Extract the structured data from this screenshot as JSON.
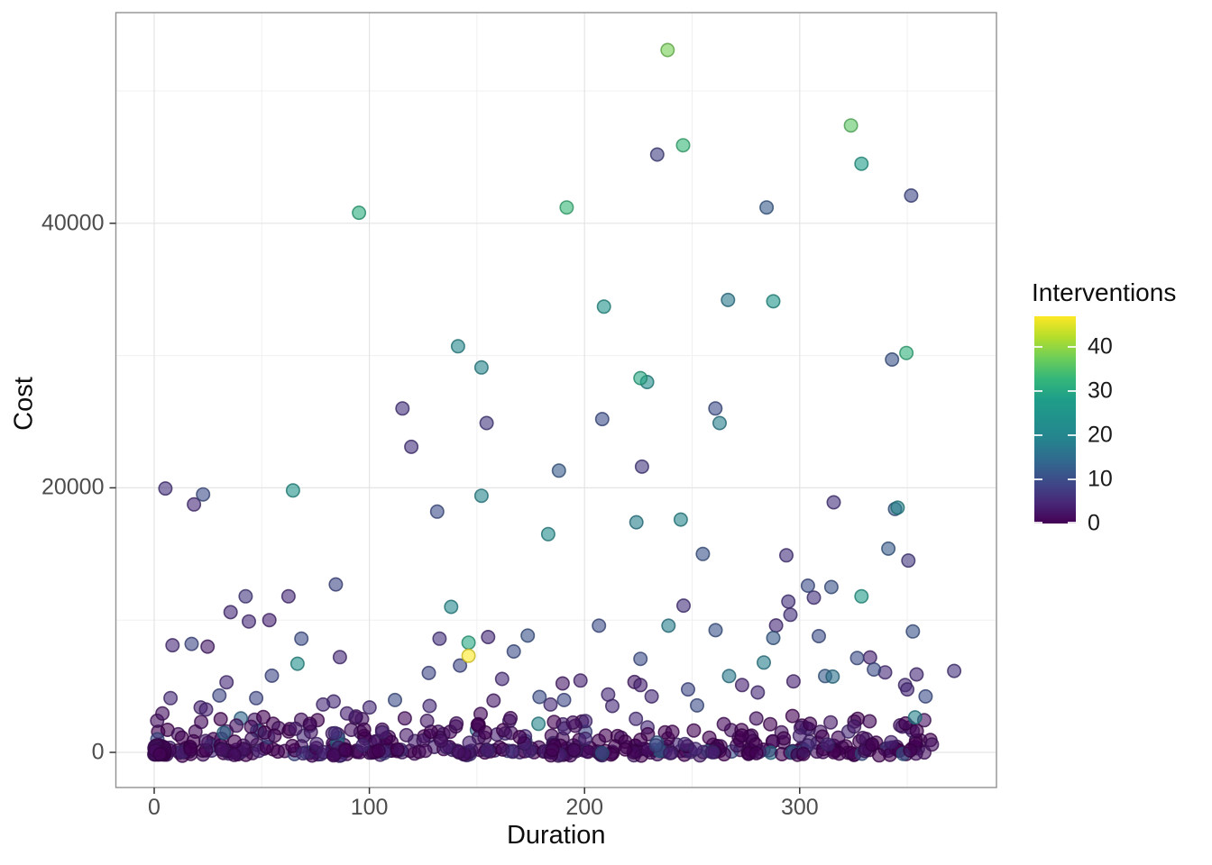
{
  "chart_data": {
    "type": "scatter",
    "xlabel": "Duration",
    "ylabel": "Cost",
    "x_ticks": [
      0,
      100,
      200,
      300
    ],
    "x_tick_labels": [
      "0",
      "100",
      "200",
      "300"
    ],
    "x_minor_ticks": [
      50,
      150,
      250,
      350
    ],
    "y_ticks": [
      0,
      20000,
      40000
    ],
    "y_tick_labels": [
      "0",
      "20000",
      "40000"
    ],
    "y_minor_ticks": [
      10000,
      30000,
      50000
    ],
    "xlim": [
      -18,
      391
    ],
    "ylim": [
      -2620,
      55900
    ],
    "grid": "on",
    "legend": {
      "title": "Interventions",
      "position": "right",
      "ticks": [
        0,
        10,
        20,
        30,
        40
      ],
      "tick_labels": [
        "0",
        "10",
        "20",
        "30",
        "40"
      ],
      "domain": [
        0,
        47
      ]
    },
    "viridis_stops": [
      "#440154",
      "#482878",
      "#3e4a89",
      "#31688e",
      "#26828e",
      "#21918c",
      "#1f9e89",
      "#35b779",
      "#6ece58",
      "#b5de2b",
      "#fde725"
    ],
    "points_format": [
      "duration",
      "cost",
      "interventions"
    ],
    "points": [
      [
        238.6,
        53100,
        38
      ],
      [
        323.8,
        47400,
        36
      ],
      [
        245.8,
        45900,
        33
      ],
      [
        233.8,
        45200,
        8
      ],
      [
        328.7,
        44500,
        28
      ],
      [
        351.8,
        42100,
        9
      ],
      [
        191.7,
        41200,
        33
      ],
      [
        284.6,
        41200,
        12
      ],
      [
        95.2,
        40800,
        31
      ],
      [
        266.7,
        34200,
        17
      ],
      [
        287.7,
        34100,
        25
      ],
      [
        209,
        33700,
        24
      ],
      [
        141.2,
        30700,
        21
      ],
      [
        349.6,
        30200,
        32
      ],
      [
        342.9,
        29700,
        11
      ],
      [
        152.1,
        29100,
        20
      ],
      [
        226,
        28300,
        30
      ],
      [
        229.1,
        28000,
        22
      ],
      [
        115.4,
        26000,
        6
      ],
      [
        260.8,
        26000,
        10
      ],
      [
        208.2,
        25200,
        10
      ],
      [
        262.8,
        24900,
        18
      ],
      [
        154.5,
        24900,
        7
      ],
      [
        119.5,
        23100,
        6
      ],
      [
        226.7,
        21600,
        7
      ],
      [
        188.1,
        21300,
        12
      ],
      [
        5.2,
        19950,
        6
      ],
      [
        64.5,
        19800,
        24
      ],
      [
        22.7,
        19500,
        10
      ],
      [
        152.1,
        19400,
        20
      ],
      [
        315.8,
        18900,
        6
      ],
      [
        18.5,
        18750,
        5
      ],
      [
        344.3,
        18400,
        12
      ],
      [
        345.5,
        18500,
        20
      ],
      [
        131.5,
        18200,
        10
      ],
      [
        244.7,
        17600,
        20
      ],
      [
        224.1,
        17400,
        18
      ],
      [
        183.1,
        16500,
        22
      ],
      [
        341.2,
        15400,
        12
      ],
      [
        255,
        15000,
        11
      ],
      [
        293.8,
        14900,
        6
      ],
      [
        350.5,
        14500,
        7
      ],
      [
        84.4,
        12700,
        9
      ],
      [
        303.8,
        12600,
        10
      ],
      [
        314.7,
        12500,
        11
      ],
      [
        42.5,
        11800,
        7
      ],
      [
        62.4,
        11800,
        5
      ],
      [
        328.7,
        11800,
        27
      ],
      [
        306.6,
        11700,
        6
      ],
      [
        294.7,
        11400,
        6
      ],
      [
        246,
        11100,
        6
      ],
      [
        138,
        11000,
        21
      ],
      [
        35.5,
        10600,
        5
      ],
      [
        295.7,
        10400,
        6
      ],
      [
        53.5,
        10000,
        4
      ],
      [
        44,
        9900,
        5
      ],
      [
        289,
        9600,
        5
      ],
      [
        206.7,
        9580,
        10
      ],
      [
        239,
        9580,
        18
      ],
      [
        260.9,
        9240,
        11
      ],
      [
        352.6,
        9140,
        11
      ],
      [
        173.6,
        8830,
        11
      ],
      [
        308.9,
        8790,
        10
      ],
      [
        155.2,
        8720,
        5
      ],
      [
        287.7,
        8650,
        12
      ],
      [
        68.4,
        8600,
        10
      ],
      [
        132.6,
        8600,
        6
      ],
      [
        146.1,
        8300,
        30
      ],
      [
        17.4,
        8200,
        9
      ],
      [
        8.5,
        8100,
        5
      ],
      [
        24.8,
        8000,
        3
      ],
      [
        167.1,
        7630,
        10
      ],
      [
        146.1,
        7300,
        47
      ],
      [
        86.3,
        7200,
        5
      ],
      [
        332.7,
        7180,
        4
      ],
      [
        326.7,
        7130,
        10
      ],
      [
        226,
        7070,
        10
      ],
      [
        283.3,
        6790,
        18
      ],
      [
        66.6,
        6700,
        23
      ],
      [
        142.1,
        6570,
        9
      ],
      [
        334.5,
        6270,
        10
      ],
      [
        371.8,
        6160,
        6
      ],
      [
        127.6,
        6000,
        9
      ],
      [
        339.7,
        6050,
        5
      ],
      [
        354.3,
        5890,
        5
      ],
      [
        54.7,
        5800,
        9
      ],
      [
        267.2,
        5770,
        17
      ],
      [
        311.8,
        5770,
        12
      ],
      [
        315.3,
        5730,
        16
      ],
      [
        161.7,
        5550,
        5
      ],
      [
        198.1,
        5430,
        4
      ],
      [
        297.1,
        5370,
        4
      ],
      [
        223.2,
        5320,
        3
      ],
      [
        33.6,
        5300,
        5
      ],
      [
        189.8,
        5210,
        3
      ],
      [
        349,
        5090,
        5
      ],
      [
        273.2,
        5090,
        4
      ],
      [
        226,
        5090,
        4
      ],
      [
        350,
        4760,
        5
      ],
      [
        248.1,
        4760,
        9
      ],
      [
        280.5,
        4530,
        5
      ],
      [
        211,
        4370,
        5
      ],
      [
        30.3,
        4300,
        9
      ],
      [
        358.5,
        4230,
        10
      ],
      [
        231.2,
        4230,
        5
      ],
      [
        179.1,
        4190,
        10
      ],
      [
        47.4,
        4100,
        9
      ],
      [
        7.6,
        4100,
        5
      ],
      [
        190.5,
        3960,
        9
      ],
      [
        111.9,
        3960,
        10
      ],
      [
        157.7,
        3920,
        3
      ],
      [
        83.4,
        3850,
        5
      ],
      [
        184.2,
        3620,
        5
      ],
      [
        78.5,
        3620,
        5
      ],
      [
        252.3,
        3550,
        10
      ],
      [
        212.9,
        3510,
        5
      ],
      [
        128,
        3510,
        5
      ],
      [
        21.6,
        3400,
        4
      ],
      [
        100.1,
        3400,
        5
      ],
      [
        24.1,
        3240,
        4
      ],
      [
        3.8,
        2940,
        2
      ],
      [
        89.6,
        2940,
        4
      ],
      [
        93.8,
        2720,
        3
      ],
      [
        353.6,
        2650,
        19
      ],
      [
        178.6,
        2160,
        20
      ]
    ],
    "dense_band": {
      "description": "heavily overplotted mass of low-cost points along the x axis",
      "count": 470,
      "seed": 20,
      "duration_range": [
        0,
        362
      ],
      "cost_range": [
        -260,
        2800
      ],
      "zero_cluster": {
        "count": 75,
        "duration_range": [
          0,
          5
        ],
        "cost_range": [
          -150,
          550
        ]
      }
    }
  },
  "style": {
    "background": "#ffffff",
    "panel_border": "#919191",
    "grid_major": "#e4e4e4",
    "grid_minor": "#f0f0f0",
    "tick_mark": "#333333",
    "axis_text": "#4d4d4d",
    "title_text": "#0d0d0d",
    "point_alpha": 0.6
  }
}
